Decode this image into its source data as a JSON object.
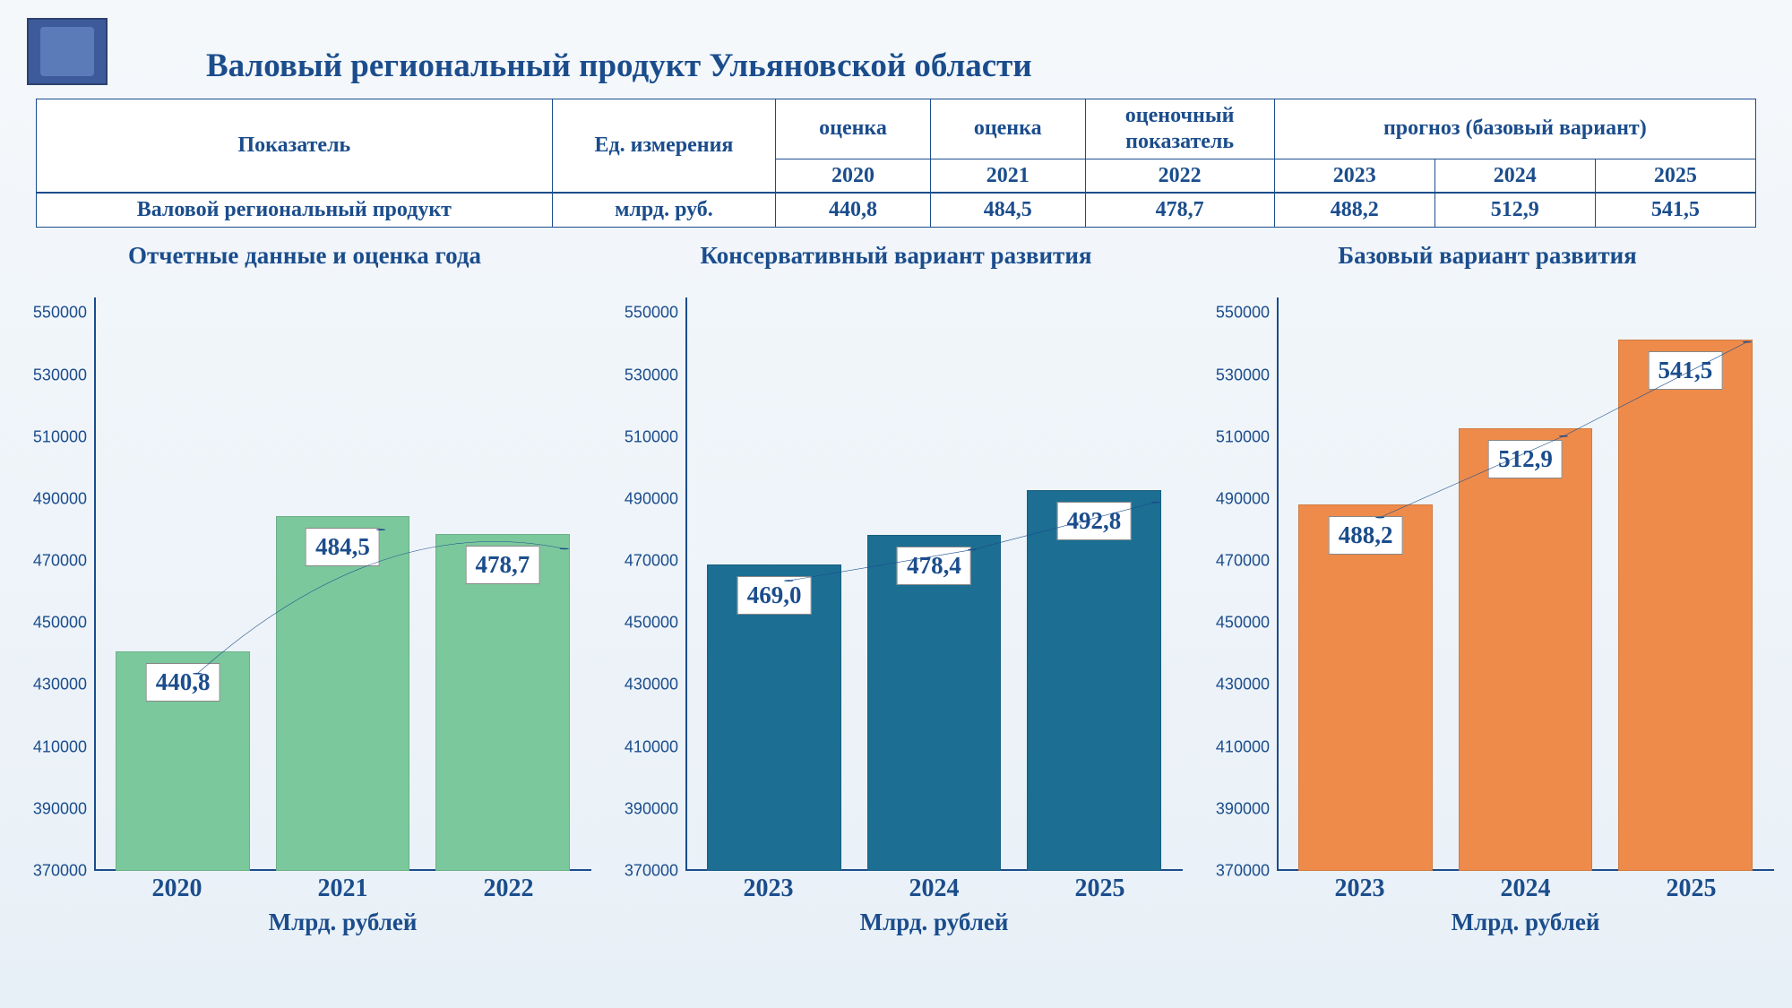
{
  "title": {
    "text": "Валовый региональный продукт Ульяновской области",
    "fontsize": 37
  },
  "logo_color": "#3d5a9b",
  "table": {
    "font_size": 24,
    "header1": [
      "Показатель",
      "Ед. измерения",
      "оценка",
      "оценка",
      "оценочный показатель",
      "прогноз (базовый вариант)"
    ],
    "header2": [
      "2020",
      "2021",
      "2022",
      "2023",
      "2024",
      "2025"
    ],
    "row": {
      "label": "Валовой региональный продукт",
      "unit": "млрд. руб.",
      "values": [
        "440,8",
        "484,5",
        "478,7",
        "488,2",
        "512,9",
        "541,5"
      ]
    },
    "col_widths_pct": [
      30,
      13,
      9,
      9,
      11,
      28
    ],
    "text_color": "#1b4d8c",
    "border_color": "#1b4d8c"
  },
  "charts": [
    {
      "title": "Отчетные данные и оценка года",
      "type": "bar",
      "bar_color": "#7cc89d",
      "categories": [
        "2020",
        "2021",
        "2022"
      ],
      "values": [
        440.8,
        484.5,
        478.7
      ],
      "labels": [
        "440,8",
        "484,5",
        "478,7"
      ],
      "ylim": [
        370000,
        555000
      ],
      "yticks": [
        370000,
        390000,
        410000,
        430000,
        450000,
        470000,
        490000,
        510000,
        530000,
        550000
      ],
      "trend_line_color": "#1b4d8c",
      "trend_curve": true,
      "x_caption": "Млрд. рублей",
      "title_fontsize": 27,
      "tick_fontsize": 18,
      "xlabel_fontsize": 28,
      "barlabel_fontsize": 27,
      "caption_fontsize": 27
    },
    {
      "title": "Консервативный вариант развития",
      "type": "bar",
      "bar_color": "#1c6e93",
      "categories": [
        "2023",
        "2024",
        "2025"
      ],
      "values": [
        469.0,
        478.4,
        492.8
      ],
      "labels": [
        "469,0",
        "478,4",
        "492,8"
      ],
      "ylim": [
        370000,
        555000
      ],
      "yticks": [
        370000,
        390000,
        410000,
        430000,
        450000,
        470000,
        490000,
        510000,
        530000,
        550000
      ],
      "trend_line_color": "#1b4d8c",
      "trend_curve": false,
      "x_caption": "Млрд. рублей",
      "title_fontsize": 27,
      "tick_fontsize": 18,
      "xlabel_fontsize": 28,
      "barlabel_fontsize": 27,
      "caption_fontsize": 27
    },
    {
      "title": "Базовый вариант развития",
      "type": "bar",
      "bar_color": "#ee8b4b",
      "categories": [
        "2023",
        "2024",
        "2025"
      ],
      "values": [
        488.2,
        512.9,
        541.5
      ],
      "labels": [
        "488,2",
        "512,9",
        "541,5"
      ],
      "ylim": [
        370000,
        555000
      ],
      "yticks": [
        370000,
        390000,
        410000,
        430000,
        450000,
        470000,
        490000,
        510000,
        530000,
        550000
      ],
      "trend_line_color": "#1b4d8c",
      "trend_curve": false,
      "x_caption": "Млрд. рублей",
      "title_fontsize": 27,
      "tick_fontsize": 18,
      "xlabel_fontsize": 28,
      "barlabel_fontsize": 27,
      "caption_fontsize": 27
    }
  ]
}
